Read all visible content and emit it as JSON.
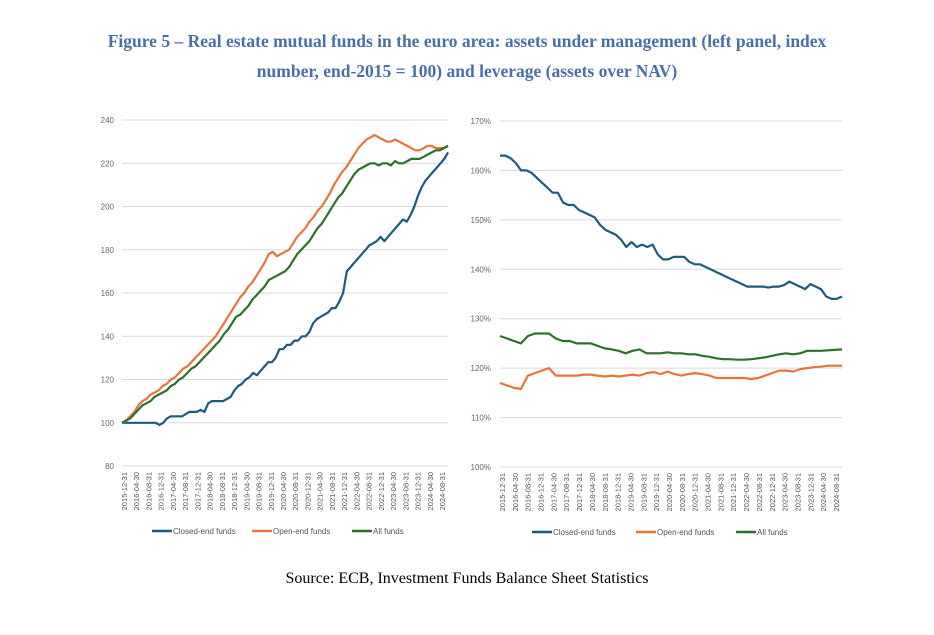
{
  "title": {
    "line1": "Figure 5 – Real estate mutual funds in the euro area: assets under management (left panel, index",
    "line2": "number, end-2015 = 100) and leverage (assets over NAV)"
  },
  "source": "Source: ECB, Investment Funds Balance Sheet Statistics",
  "colors": {
    "closed": "#1d5a7e",
    "open": "#e8743b",
    "all": "#2e6f2a",
    "grid": "#d9d9d9"
  },
  "chart_data": [
    {
      "type": "line",
      "title": "Assets under management (index number, end-2015 = 100)",
      "ylim": [
        80,
        240
      ],
      "yticks": [
        "80",
        "100",
        "120",
        "140",
        "160",
        "180",
        "200",
        "220",
        "240"
      ],
      "xticks": [
        "2015-12-31",
        "2016-04-30",
        "2016-08-31",
        "2016-12-31",
        "2017-04-30",
        "2017-08-31",
        "2017-12-31",
        "2018-04-30",
        "2018-08-31",
        "2018-12-31",
        "2019-04-30",
        "2019-08-31",
        "2019-12-31",
        "2020-04-30",
        "2020-08-31",
        "2020-12-31",
        "2021-04-30",
        "2021-08-31",
        "2021-12-31",
        "2022-04-30",
        "2022-08-31",
        "2022-12-31",
        "2023-04-30",
        "2023-08-31",
        "2023-12-31",
        "2024-04-30",
        "2024-08-31"
      ],
      "series": [
        {
          "name": "Closed-end funds",
          "key": "closed",
          "values": [
            100,
            100,
            100,
            100,
            100,
            100,
            100,
            100,
            100,
            100,
            99,
            100,
            102,
            103,
            103,
            103,
            103,
            104,
            105,
            105,
            105,
            106,
            105,
            109,
            110,
            110,
            110,
            110,
            111,
            112,
            115,
            117,
            118,
            120,
            121,
            123,
            122,
            124,
            126,
            128,
            128,
            130,
            134,
            134,
            136,
            136,
            138,
            138,
            140,
            140,
            142,
            146,
            148,
            149,
            150,
            151,
            153,
            153,
            156,
            160,
            170,
            172,
            174,
            176,
            178,
            180,
            182,
            183,
            184,
            186,
            184,
            186,
            188,
            190,
            192,
            194,
            193,
            196,
            200,
            205,
            209,
            212,
            214,
            216,
            218,
            220,
            222,
            225
          ]
        },
        {
          "name": "Open-end funds",
          "key": "open",
          "values": [
            100,
            101,
            103,
            105,
            108,
            110,
            111,
            113,
            114,
            115,
            117,
            118,
            120,
            121,
            123,
            125,
            126,
            128,
            130,
            132,
            134,
            136,
            138,
            140,
            143,
            146,
            149,
            152,
            155,
            158,
            160,
            163,
            165,
            168,
            171,
            174,
            178,
            179,
            177,
            178,
            179,
            180,
            183,
            186,
            188,
            190,
            193,
            195,
            198,
            200,
            203,
            206,
            210,
            213,
            216,
            218,
            221,
            224,
            227,
            229,
            231,
            232,
            233,
            232,
            231,
            230,
            230,
            231,
            230,
            229,
            228,
            227,
            226,
            226,
            227,
            228,
            228,
            227,
            227,
            227,
            228
          ]
        },
        {
          "name": "All funds",
          "key": "all",
          "values": [
            100,
            101,
            102,
            104,
            106,
            108,
            109,
            110,
            112,
            113,
            114,
            115,
            117,
            118,
            120,
            121,
            123,
            125,
            126,
            128,
            130,
            132,
            134,
            136,
            138,
            141,
            143,
            146,
            149,
            150,
            152,
            154,
            157,
            159,
            161,
            163,
            166,
            167,
            168,
            169,
            170,
            172,
            175,
            178,
            180,
            182,
            184,
            187,
            190,
            192,
            195,
            198,
            201,
            204,
            206,
            209,
            212,
            215,
            217,
            218,
            219,
            220,
            220,
            219,
            220,
            220,
            219,
            221,
            220,
            220,
            221,
            222,
            222,
            222,
            223,
            224,
            225,
            226,
            226,
            227,
            228
          ]
        }
      ],
      "legend": "bottom"
    },
    {
      "type": "line",
      "title": "Leverage (assets over NAV)",
      "ylim": [
        100,
        170
      ],
      "yticks": [
        "100%",
        "110%",
        "120%",
        "130%",
        "140%",
        "150%",
        "160%",
        "170%"
      ],
      "xticks": [
        "2015-12-31",
        "2016-04-30",
        "2016-08-31",
        "2016-12-31",
        "2017-04-30",
        "2017-08-31",
        "2017-12-31",
        "2018-04-30",
        "2018-08-31",
        "2018-12-31",
        "2019-04-30",
        "2019-08-31",
        "2019-12-31",
        "2020-04-30",
        "2020-08-31",
        "2020-12-31",
        "2021-04-30",
        "2021-08-31",
        "2021-12-31",
        "2022-04-30",
        "2022-08-31",
        "2022-12-31",
        "2023-04-30",
        "2023-08-31",
        "2023-12-31",
        "2024-04-30",
        "2024-08-31"
      ],
      "series": [
        {
          "name": "Closed-end funds",
          "key": "closed",
          "values": [
            163,
            163,
            162.5,
            161.5,
            160,
            160,
            159.5,
            158.5,
            157.5,
            156.5,
            155.5,
            155.5,
            153.5,
            153,
            153,
            152,
            151.5,
            151,
            150.5,
            149,
            148,
            147.5,
            147,
            146,
            144.5,
            145.5,
            144.5,
            145,
            144.5,
            145,
            143,
            142,
            142,
            142.5,
            142.5,
            142.5,
            141.5,
            141,
            141,
            140.5,
            140,
            139.5,
            139,
            138.5,
            138,
            137.5,
            137,
            136.5,
            136.5,
            136.5,
            136.5,
            136.3,
            136.5,
            136.5,
            136.8,
            137.5,
            137,
            136.5,
            136,
            137,
            136.5,
            136,
            134.5,
            134,
            134,
            134.5
          ]
        },
        {
          "name": "Open-end funds",
          "key": "open",
          "values": [
            117,
            116.5,
            116,
            115.8,
            118.5,
            119,
            119.5,
            120,
            118.5,
            118.5,
            118.5,
            118.5,
            118.7,
            118.7,
            118.5,
            118.3,
            118.5,
            118.3,
            118.5,
            118.7,
            118.5,
            119,
            119.2,
            118.8,
            119.3,
            118.8,
            118.5,
            118.8,
            119,
            118.8,
            118.5,
            118,
            118,
            118,
            118,
            118,
            117.8,
            118,
            118.5,
            119,
            119.5,
            119.5,
            119.3,
            119.8,
            120,
            120.2,
            120.3,
            120.5,
            120.5,
            120.5
          ]
        },
        {
          "name": "All funds",
          "key": "all",
          "values": [
            126.5,
            126,
            125.5,
            125,
            126.5,
            127,
            127,
            127,
            126,
            125.5,
            125.5,
            125,
            125,
            125,
            124.5,
            124,
            123.8,
            123.5,
            123,
            123.5,
            123.8,
            123,
            123,
            123,
            123.2,
            123,
            123,
            122.8,
            122.8,
            122.5,
            122.3,
            122,
            121.8,
            121.8,
            121.7,
            121.7,
            121.8,
            122,
            122.2,
            122.5,
            122.8,
            123,
            122.8,
            123,
            123.5,
            123.5,
            123.5,
            123.6,
            123.7,
            123.8
          ]
        }
      ],
      "legend": "bottom"
    }
  ]
}
